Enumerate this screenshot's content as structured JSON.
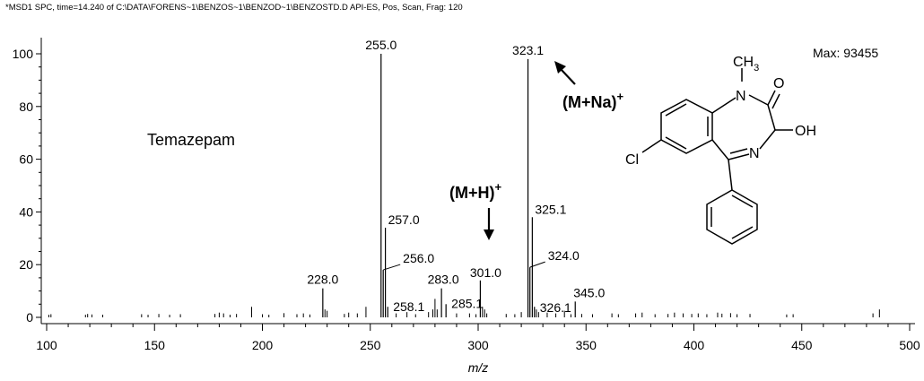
{
  "header": "*MSD1 SPC, time=14.240 of C:\\DATA\\FORENS~1\\BENZOS~1\\BENZOD~1\\BENZOSTD.D   API-ES, Pos, Scan, Frag: 120",
  "chart_data": {
    "type": "bar",
    "xlabel": "m/z",
    "ylabel": "",
    "xlim": [
      100,
      502
    ],
    "ylim": [
      0,
      105
    ],
    "xticks": [
      100,
      150,
      200,
      250,
      300,
      350,
      400,
      450,
      500
    ],
    "yticks": [
      0,
      20,
      40,
      60,
      80,
      100
    ],
    "compound": "Temazepam",
    "max_text": "Max: 93455",
    "annotations": [
      {
        "main": "(M+H)",
        "sup": "+"
      },
      {
        "main": "(M+Na)",
        "sup": "+"
      }
    ],
    "structure_labels": [
      "CH",
      "3",
      "O",
      "N",
      "OH",
      "N",
      "Cl"
    ],
    "labeled_peaks": [
      {
        "mz": 228.0,
        "intensity": 11,
        "label": "228.0"
      },
      {
        "mz": 255.0,
        "intensity": 100,
        "label": "255.0"
      },
      {
        "mz": 256.0,
        "intensity": 18,
        "label": "256.0"
      },
      {
        "mz": 257.0,
        "intensity": 34,
        "label": "257.0"
      },
      {
        "mz": 258.1,
        "intensity": 4,
        "label": "258.1"
      },
      {
        "mz": 283.0,
        "intensity": 11,
        "label": "283.0"
      },
      {
        "mz": 285.1,
        "intensity": 5,
        "label": "285.1"
      },
      {
        "mz": 301.0,
        "intensity": 14,
        "label": "301.0"
      },
      {
        "mz": 323.1,
        "intensity": 98,
        "label": "323.1"
      },
      {
        "mz": 324.0,
        "intensity": 19,
        "label": "324.0"
      },
      {
        "mz": 325.1,
        "intensity": 38,
        "label": "325.1"
      },
      {
        "mz": 326.1,
        "intensity": 4,
        "label": "326.1"
      },
      {
        "mz": 345.0,
        "intensity": 6,
        "label": "345.0"
      }
    ],
    "minor_peaks": [
      [
        101,
        1
      ],
      [
        102,
        1.2
      ],
      [
        118,
        1
      ],
      [
        119,
        1.3
      ],
      [
        121,
        1.1
      ],
      [
        126,
        1
      ],
      [
        144,
        1.2
      ],
      [
        147,
        1
      ],
      [
        152,
        1.3
      ],
      [
        157,
        1
      ],
      [
        162,
        1.2
      ],
      [
        178,
        1.3
      ],
      [
        180,
        1.8
      ],
      [
        182,
        1.5
      ],
      [
        185,
        1
      ],
      [
        188,
        1.3
      ],
      [
        195,
        4
      ],
      [
        200,
        1.2
      ],
      [
        203,
        1
      ],
      [
        210,
        1.6
      ],
      [
        216,
        1.2
      ],
      [
        219,
        1.5
      ],
      [
        222,
        1.1
      ],
      [
        229,
        3
      ],
      [
        230,
        2.5
      ],
      [
        238,
        1.3
      ],
      [
        240,
        1.8
      ],
      [
        244,
        1.5
      ],
      [
        248,
        4
      ],
      [
        262,
        1.5
      ],
      [
        267,
        2
      ],
      [
        271,
        1.2
      ],
      [
        277,
        2
      ],
      [
        279,
        3
      ],
      [
        280,
        7
      ],
      [
        281,
        3
      ],
      [
        290,
        1.5
      ],
      [
        296,
        1.5
      ],
      [
        299,
        1.2
      ],
      [
        302,
        4
      ],
      [
        303,
        3
      ],
      [
        304,
        1.5
      ],
      [
        313,
        1.3
      ],
      [
        317,
        1.2
      ],
      [
        320,
        2
      ],
      [
        327,
        3
      ],
      [
        328,
        2
      ],
      [
        332,
        1.8
      ],
      [
        336,
        1.5
      ],
      [
        340,
        2.5
      ],
      [
        343,
        1.2
      ],
      [
        348,
        1.3
      ],
      [
        353,
        1.2
      ],
      [
        362,
        1.5
      ],
      [
        365,
        1.2
      ],
      [
        373,
        1.5
      ],
      [
        376,
        1.8
      ],
      [
        382,
        1.2
      ],
      [
        388,
        1.3
      ],
      [
        391,
        1.8
      ],
      [
        395,
        1.5
      ],
      [
        399,
        1.3
      ],
      [
        402,
        1.5
      ],
      [
        406,
        1.2
      ],
      [
        411,
        1.8
      ],
      [
        413,
        1.4
      ],
      [
        417,
        1.6
      ],
      [
        420,
        1.2
      ],
      [
        426,
        1.3
      ],
      [
        443,
        1.1
      ],
      [
        446,
        1.2
      ],
      [
        483,
        1.5
      ],
      [
        486,
        3
      ]
    ]
  }
}
